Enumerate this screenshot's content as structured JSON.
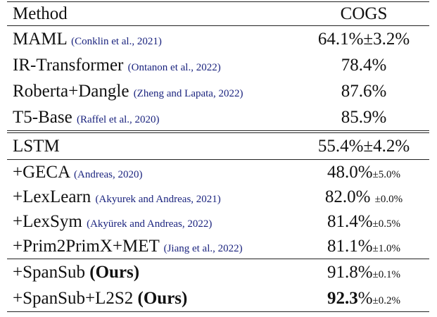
{
  "header": [
    "Method",
    "COGS"
  ],
  "groups": [
    {
      "rows": [
        {
          "method": [
            {
              "text": "MAML"
            },
            {
              "text": "(Conklin et al., 2021)",
              "style": "cite"
            }
          ],
          "score": [
            {
              "text": "64.1%±3.2%"
            }
          ]
        },
        {
          "method": [
            {
              "text": "IR-Transformer"
            },
            {
              "text": "(Ontanon et al., 2022)",
              "style": "cite"
            }
          ],
          "score": [
            {
              "text": "78.4%"
            }
          ]
        },
        {
          "method": [
            {
              "text": "Roberta+Dangle"
            },
            {
              "text": "(Zheng and Lapata, 2022)",
              "style": "cite"
            }
          ],
          "score": [
            {
              "text": "87.6%"
            }
          ]
        },
        {
          "method": [
            {
              "text": "T5-Base"
            },
            {
              "text": "(Raffel et al., 2020)",
              "style": "cite"
            }
          ],
          "score": [
            {
              "text": "85.9%"
            }
          ]
        }
      ]
    },
    {
      "rows": [
        {
          "method": [
            {
              "text": "LSTM"
            }
          ],
          "score": [
            {
              "text": "55.4%±4.2%"
            }
          ]
        }
      ]
    },
    {
      "rows": [
        {
          "method": [
            {
              "text": "+GECA"
            },
            {
              "text": "(Andreas, 2020)",
              "style": "cite"
            }
          ],
          "score": [
            {
              "text": "48.0%"
            },
            {
              "text": "±5.0%",
              "style": "small"
            }
          ]
        },
        {
          "method": [
            {
              "text": "+LexLearn"
            },
            {
              "text": "(Akyurek and Andreas, 2021)",
              "style": "cite"
            }
          ],
          "score": [
            {
              "text": "82.0%"
            },
            {
              "text": "±0.0%",
              "style": "small"
            }
          ]
        },
        {
          "method": [
            {
              "text": "+LexSym"
            },
            {
              "text": "(Akyürek and Andreas, 2022)",
              "style": "cite"
            }
          ],
          "score": [
            {
              "text": "81.4%"
            },
            {
              "text": "±0.5%",
              "style": "small"
            }
          ]
        },
        {
          "method": [
            {
              "text": "+Prim2PrimX+MET"
            },
            {
              "text": "(Jiang et al., 2022)",
              "style": "cite"
            }
          ],
          "score": [
            {
              "text": "81.1%"
            },
            {
              "text": "±1.0%",
              "style": "small"
            }
          ]
        }
      ]
    },
    {
      "rows": [
        {
          "method": [
            {
              "text": "+SpanSub"
            },
            {
              "text": "(Ours)",
              "style": "bold"
            }
          ],
          "score": [
            {
              "text": "91.8%"
            },
            {
              "text": "±0.1%",
              "style": "small"
            }
          ]
        },
        {
          "method": [
            {
              "text": "+SpanSub+L2S2"
            },
            {
              "text": "(Ours)",
              "style": "bold"
            }
          ],
          "score": [
            {
              "text": "92.3",
              "style": "bold"
            },
            {
              "text": "%"
            },
            {
              "text": "±0.2%",
              "style": "small"
            }
          ]
        }
      ]
    }
  ]
}
